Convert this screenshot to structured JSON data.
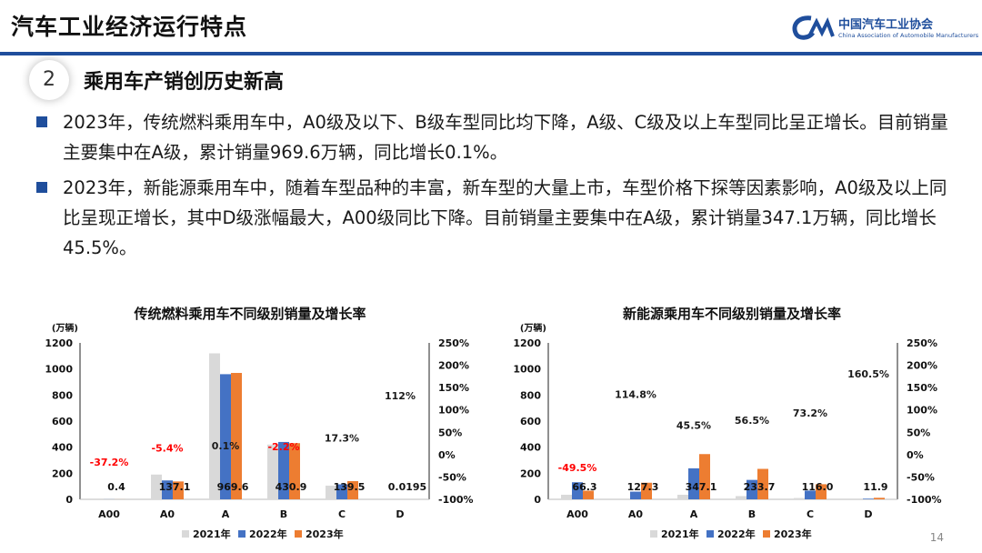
{
  "header": {
    "title": "汽车工业经济运行特点",
    "logo_cn": "中国汽车工业协会",
    "logo_en": "China Association of Automobile Manufacturers",
    "accent": "#1f4e9c"
  },
  "section": {
    "number": "2",
    "title": "乘用车产销创历史新高"
  },
  "bullets": [
    "2023年，传统燃料乘用车中，A0级及以下、B级车型同比均下降，A级、C级及以上车型同比呈正增长。目前销量主要集中在A级，累计销量969.6万辆，同比增长0.1%。",
    "2023年，新能源乘用车中，随着车型品种的丰富，新车型的大量上市，车型价格下探等因素影响，A0级及以上同比呈现正增长，其中D级涨幅最大，A00级同比下降。目前销量主要集中在A级，累计销量347.1万辆，同比增长45.5%。"
  ],
  "page_number": "14",
  "chart_data": [
    {
      "type": "bar",
      "title": "传统燃料乘用车不同级别销量及增长率",
      "unit": "(万辆)",
      "categories": [
        "A00",
        "A0",
        "A",
        "B",
        "C",
        "D"
      ],
      "series": [
        {
          "name": "2021年",
          "color": "#d9d9d9",
          "values": [
            0,
            190,
            1120,
            420,
            105,
            0
          ]
        },
        {
          "name": "2022年",
          "color": "#4472c4",
          "values": [
            0.6,
            145,
            960,
            440,
            115,
            0
          ]
        },
        {
          "name": "2023年",
          "color": "#ed7d31",
          "values": [
            0.4,
            137.1,
            969.6,
            430.9,
            139.5,
            0.0195
          ]
        }
      ],
      "value_labels": [
        "0.4",
        "137.1",
        "969.6",
        "430.9",
        "139.5",
        "0.0195"
      ],
      "growth_labels": [
        "-37.2%",
        "-5.4%",
        "0.1%",
        "-2.2%",
        "17.3%",
        "112%"
      ],
      "growth_values": [
        -37.2,
        -5.4,
        0.1,
        -2.2,
        17.3,
        112
      ],
      "growth_colors": [
        "#ff0000",
        "#ff0000",
        "#1a1a1a",
        "#ff0000",
        "#1a1a1a",
        "#1a1a1a"
      ],
      "y_left_ticks": [
        "1200",
        "1000",
        "800",
        "600",
        "400",
        "200",
        "0"
      ],
      "y_right_ticks": [
        "250%",
        "200%",
        "150%",
        "100%",
        "50%",
        "0%",
        "-50%",
        "-100%"
      ],
      "ylim": [
        0,
        1200
      ],
      "y2lim": [
        -100,
        250
      ]
    },
    {
      "type": "bar",
      "title": "新能源乘用车不同级别销量及增长率",
      "unit": "(万辆)",
      "categories": [
        "A00",
        "A0",
        "A",
        "B",
        "C",
        "D"
      ],
      "series": [
        {
          "name": "2021年",
          "color": "#d9d9d9",
          "values": [
            35,
            0,
            35,
            25,
            10,
            0
          ]
        },
        {
          "name": "2022年",
          "color": "#4472c4",
          "values": [
            131,
            59,
            238,
            149,
            67,
            5
          ]
        },
        {
          "name": "2023年",
          "color": "#ed7d31",
          "values": [
            66.3,
            127.3,
            347.1,
            233.7,
            116.0,
            11.9
          ]
        }
      ],
      "value_labels": [
        "66.3",
        "127.3",
        "347.1",
        "233.7",
        "116.0",
        "11.9"
      ],
      "growth_labels": [
        "-49.5%",
        "114.8%",
        "45.5%",
        "56.5%",
        "73.2%",
        "160.5%"
      ],
      "growth_values": [
        -49.5,
        114.8,
        45.5,
        56.5,
        73.2,
        160.5
      ],
      "growth_colors": [
        "#ff0000",
        "#1a1a1a",
        "#1a1a1a",
        "#1a1a1a",
        "#1a1a1a",
        "#1a1a1a"
      ],
      "y_left_ticks": [
        "1200",
        "1000",
        "800",
        "600",
        "400",
        "200",
        "0"
      ],
      "y_right_ticks": [
        "250%",
        "200%",
        "150%",
        "100%",
        "50%",
        "0%",
        "-50%",
        "-100%"
      ],
      "ylim": [
        0,
        1200
      ],
      "y2lim": [
        -100,
        250
      ]
    }
  ]
}
